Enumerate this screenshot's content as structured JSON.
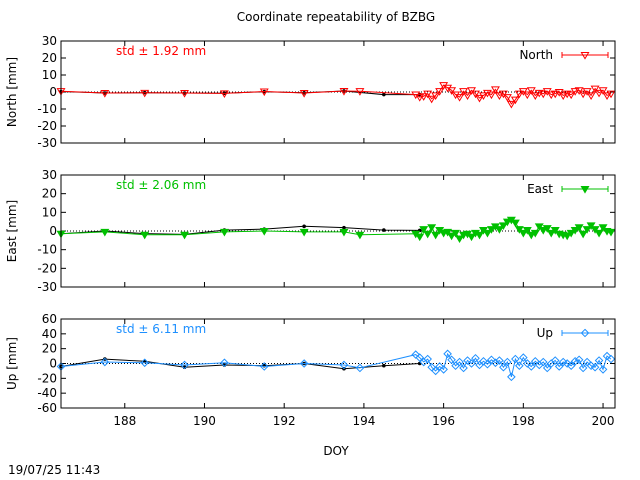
{
  "title": "Coordinate repeatability of BZBG",
  "xlabel": "DOY",
  "timestamp": "19/07/25 11:43",
  "colors": {
    "north": "#ff0000",
    "east": "#00c000",
    "up": "#1e90ff",
    "trend": "#000000"
  },
  "chart_data": [
    {
      "type": "scatter",
      "ylabel": "North [mm]",
      "std_label": "std ± 1.92 mm",
      "legend": "North",
      "legend_position": "top-right",
      "marker": "triangle-down-open",
      "xlim": [
        186.4,
        200.3
      ],
      "ylim": [
        -30,
        30
      ],
      "xticks": [
        188,
        190,
        192,
        194,
        196,
        198,
        200
      ],
      "yticks": [
        -30,
        -20,
        -10,
        0,
        10,
        20,
        30
      ],
      "trend": {
        "x": [
          186.4,
          187.5,
          188.5,
          189.5,
          190.5,
          191.5,
          192.5,
          193.5,
          194.5,
          195.4
        ],
        "y": [
          0.3,
          -0.6,
          -0.4,
          -0.6,
          -0.7,
          0.2,
          -0.5,
          0.6,
          -1.5,
          -1.5
        ]
      },
      "points": {
        "x": [
          186.4,
          187.5,
          188.5,
          189.5,
          190.5,
          191.5,
          192.5,
          193.5,
          193.9,
          195.3,
          195.4,
          195.5,
          195.6,
          195.7,
          195.8,
          195.9,
          196.0,
          196.1,
          196.2,
          196.3,
          196.4,
          196.5,
          196.6,
          196.7,
          196.8,
          196.9,
          197.0,
          197.1,
          197.2,
          197.3,
          197.4,
          197.5,
          197.6,
          197.7,
          197.8,
          197.9,
          198.0,
          198.1,
          198.2,
          198.3,
          198.4,
          198.5,
          198.6,
          198.7,
          198.8,
          198.9,
          199.0,
          199.1,
          199.2,
          199.3,
          199.4,
          199.5,
          199.6,
          199.7,
          199.8,
          199.9,
          200.0,
          200.1,
          200.2
        ],
        "y": [
          0.5,
          -0.6,
          -0.5,
          -0.6,
          -0.8,
          0.3,
          -0.6,
          0.6,
          0.5,
          -1.5,
          -3.0,
          -2.5,
          -1.0,
          -4.0,
          -2.0,
          0.5,
          4.0,
          2.5,
          1.0,
          -1.5,
          -3.0,
          0.5,
          -2.0,
          1.0,
          -1.0,
          -3.5,
          -2.0,
          -0.5,
          -1.5,
          1.5,
          -2.0,
          -1.0,
          -3.0,
          -7.0,
          -4.5,
          -1.0,
          0.5,
          -1.5,
          1.0,
          -2.0,
          -0.5,
          -1.0,
          0.5,
          -1.5,
          -1.0,
          0.0,
          -2.0,
          -1.0,
          -1.5,
          0.5,
          1.0,
          -1.0,
          0.5,
          -2.0,
          2.0,
          -0.5,
          1.0,
          -2.0,
          -1.0
        ]
      }
    },
    {
      "type": "scatter",
      "ylabel": "East [mm]",
      "std_label": "std ± 2.06 mm",
      "legend": "East",
      "legend_position": "top-right",
      "marker": "triangle-down-filled",
      "xlim": [
        186.4,
        200.3
      ],
      "ylim": [
        -30,
        30
      ],
      "xticks": [
        188,
        190,
        192,
        194,
        196,
        198,
        200
      ],
      "yticks": [
        -30,
        -20,
        -10,
        0,
        10,
        20,
        30
      ],
      "trend": {
        "x": [
          186.4,
          187.5,
          188.5,
          189.5,
          190.5,
          191.5,
          192.5,
          193.5,
          194.5,
          195.4
        ],
        "y": [
          -1.5,
          0.0,
          -1.4,
          -1.8,
          0.5,
          1.0,
          2.5,
          1.8,
          0.5,
          0.3
        ]
      },
      "points": {
        "x": [
          186.4,
          187.5,
          188.5,
          189.5,
          190.5,
          191.5,
          192.5,
          193.5,
          193.9,
          195.3,
          195.4,
          195.5,
          195.6,
          195.7,
          195.8,
          195.9,
          196.0,
          196.1,
          196.2,
          196.3,
          196.4,
          196.5,
          196.6,
          196.7,
          196.8,
          196.9,
          197.0,
          197.1,
          197.2,
          197.3,
          197.4,
          197.5,
          197.6,
          197.7,
          197.8,
          197.9,
          198.0,
          198.1,
          198.2,
          198.3,
          198.4,
          198.5,
          198.6,
          198.7,
          198.8,
          198.9,
          199.0,
          199.1,
          199.2,
          199.3,
          199.4,
          199.5,
          199.6,
          199.7,
          199.8,
          199.9,
          200.0,
          200.1,
          200.2
        ],
        "y": [
          -1.5,
          -0.5,
          -2.0,
          -2.0,
          -0.5,
          0.0,
          -0.5,
          -0.5,
          -2.0,
          -1.5,
          -3.0,
          1.0,
          -1.5,
          2.0,
          -2.0,
          0.5,
          -1.0,
          -0.5,
          -2.5,
          -1.0,
          -4.0,
          -2.0,
          -1.5,
          -3.0,
          -1.0,
          -2.0,
          0.5,
          -1.0,
          1.0,
          2.5,
          1.0,
          3.0,
          5.0,
          6.0,
          4.5,
          1.0,
          -1.0,
          0.5,
          -2.0,
          -1.0,
          2.5,
          0.5,
          1.5,
          -1.0,
          0.5,
          -1.5,
          -2.0,
          -2.5,
          -1.0,
          0.5,
          2.0,
          -1.5,
          1.0,
          3.0,
          1.0,
          -1.0,
          2.0,
          0.0,
          -0.5
        ]
      }
    },
    {
      "type": "scatter",
      "ylabel": "Up [mm]",
      "std_label": "std ± 6.11 mm",
      "legend": "Up",
      "legend_position": "top-right",
      "marker": "diamond-open",
      "xlim": [
        186.4,
        200.3
      ],
      "ylim": [
        -60,
        60
      ],
      "xticks": [
        188,
        190,
        192,
        194,
        196,
        198,
        200
      ],
      "yticks": [
        -60,
        -40,
        -20,
        0,
        20,
        40,
        60
      ],
      "trend": {
        "x": [
          186.4,
          187.5,
          188.5,
          189.5,
          190.5,
          191.5,
          192.5,
          193.5,
          194.5,
          195.4
        ],
        "y": [
          -4.0,
          6.0,
          3.0,
          -5.0,
          -2.0,
          -3.0,
          0.0,
          -7.0,
          -3.0,
          0.0
        ]
      },
      "points": {
        "x": [
          186.4,
          187.5,
          188.5,
          189.5,
          190.5,
          191.5,
          192.5,
          193.5,
          193.9,
          195.3,
          195.4,
          195.5,
          195.6,
          195.7,
          195.8,
          195.9,
          196.0,
          196.1,
          196.2,
          196.3,
          196.4,
          196.5,
          196.6,
          196.7,
          196.8,
          196.9,
          197.0,
          197.1,
          197.2,
          197.3,
          197.4,
          197.5,
          197.6,
          197.7,
          197.8,
          197.9,
          198.0,
          198.1,
          198.2,
          198.3,
          198.4,
          198.5,
          198.6,
          198.7,
          198.8,
          198.9,
          199.0,
          199.1,
          199.2,
          199.3,
          199.4,
          199.5,
          199.6,
          199.7,
          199.8,
          199.9,
          200.0,
          200.1,
          200.2
        ],
        "y": [
          -4.0,
          2.0,
          1.0,
          -2.0,
          1.0,
          -4.0,
          0.0,
          -2.0,
          -6.0,
          12.0,
          8.0,
          2.0,
          6.0,
          -5.0,
          -10.0,
          -4.0,
          -8.0,
          13.0,
          5.0,
          -3.0,
          2.0,
          -6.0,
          4.0,
          0.0,
          7.0,
          -2.0,
          3.0,
          -1.0,
          5.0,
          1.0,
          4.0,
          -5.0,
          2.0,
          -18.0,
          6.0,
          -3.0,
          8.0,
          0.0,
          -4.0,
          3.0,
          -2.0,
          2.0,
          -6.0,
          0.0,
          4.0,
          -4.0,
          2.0,
          0.0,
          -3.0,
          3.0,
          5.0,
          -6.0,
          2.0,
          -3.0,
          -5.0,
          4.0,
          -8.0,
          10.0,
          6.0
        ]
      }
    }
  ]
}
